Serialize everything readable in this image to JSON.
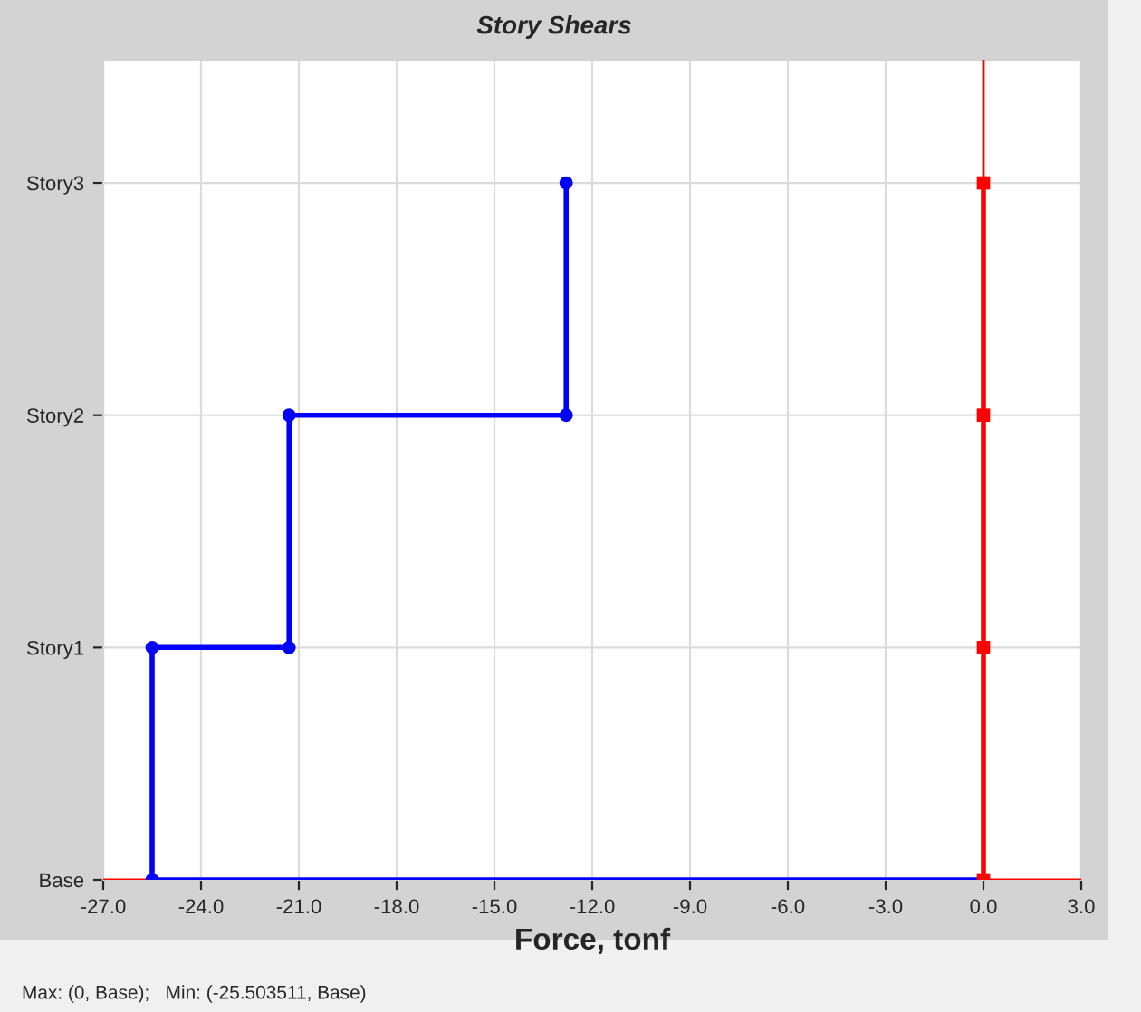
{
  "chart_data": {
    "type": "step",
    "orientation": "horizontal",
    "title": "Story Shears",
    "xlabel": "Force, tonf",
    "categories": [
      "Story3",
      "Story2",
      "Story1",
      "Base"
    ],
    "series": [
      {
        "color": "#0000ff",
        "marker": "circle",
        "values": [
          -12.8,
          -21.3,
          -25.5,
          0
        ]
      },
      {
        "color": "#0000ff",
        "marker": "circle",
        "type": "scatter",
        "values": [
          null,
          -12.8,
          -21.3,
          -25.5
        ]
      },
      {
        "color": "#ff0000",
        "marker": "square",
        "type": "line",
        "values": [
          0,
          0,
          0,
          0
        ]
      }
    ],
    "xlim": [
      -27,
      3
    ],
    "xticks": [
      {
        "value": -27,
        "label": "-27.0"
      },
      {
        "value": -24,
        "label": "-24.0"
      },
      {
        "value": -21,
        "label": "-21.0"
      },
      {
        "value": -18,
        "label": "-18.0"
      },
      {
        "value": -15,
        "label": "-15.0"
      },
      {
        "value": -12,
        "label": "-12.0"
      },
      {
        "value": -9,
        "label": "-9.0"
      },
      {
        "value": -6,
        "label": "-6.0"
      },
      {
        "value": -3,
        "label": "-3.0"
      },
      {
        "value": 0,
        "label": "0.0"
      },
      {
        "value": 3,
        "label": "3.0"
      }
    ],
    "ref_lines": [
      {
        "axis": "x",
        "value": 0,
        "color": "#ff0000"
      },
      {
        "axis": "y",
        "value": "Base",
        "color": "#ff0000"
      }
    ],
    "grid": true,
    "line_style": "solid",
    "annotations": [
      "Max: (0, Base);   Min: (-25.503511, Base)"
    ]
  }
}
